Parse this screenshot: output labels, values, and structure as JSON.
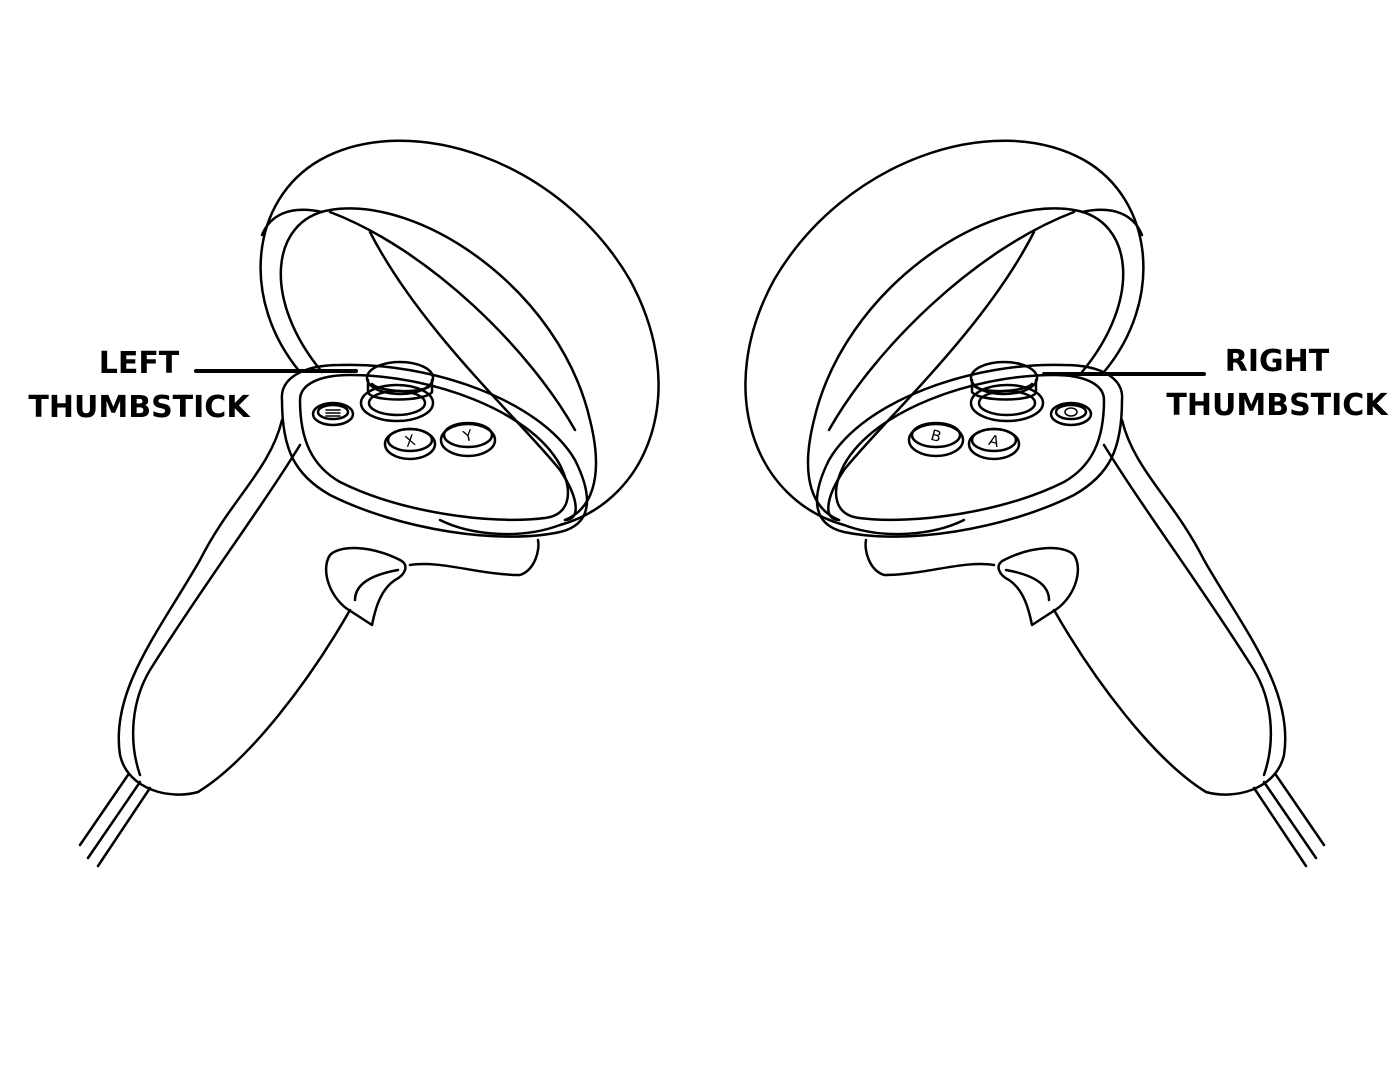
{
  "callouts": {
    "left": {
      "line1": "LEFT",
      "line2": "THUMBSTICK"
    },
    "right": {
      "line1": "RIGHT",
      "line2": "THUMBSTICK"
    }
  },
  "buttons": {
    "left": {
      "x": "X",
      "y": "Y"
    },
    "right": {
      "a": "A",
      "b": "B"
    }
  },
  "colors": {
    "line": "#000000",
    "background": "#ffffff"
  }
}
